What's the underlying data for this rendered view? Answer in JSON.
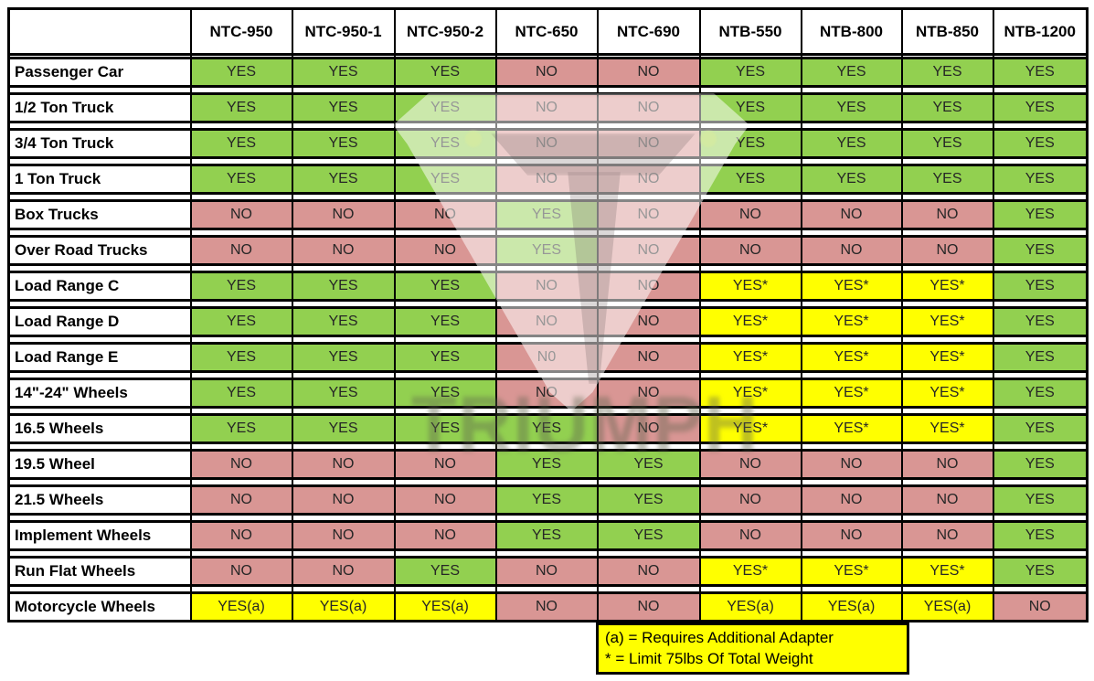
{
  "chart_data": {
    "type": "table",
    "columns": [
      "NTC-950",
      "NTC-950-1",
      "NTC-950-2",
      "NTC-650",
      "NTC-690",
      "NTB-550",
      "NTB-800",
      "NTB-850",
      "NTB-1200"
    ],
    "rows": [
      {
        "label": "Passenger Car",
        "values": [
          "YES",
          "YES",
          "YES",
          "NO",
          "NO",
          "YES",
          "YES",
          "YES",
          "YES"
        ]
      },
      {
        "label": "1/2 Ton Truck",
        "values": [
          "YES",
          "YES",
          "YES",
          "NO",
          "NO",
          "YES",
          "YES",
          "YES",
          "YES"
        ]
      },
      {
        "label": "3/4 Ton Truck",
        "values": [
          "YES",
          "YES",
          "YES",
          "NO",
          "NO",
          "YES",
          "YES",
          "YES",
          "YES"
        ]
      },
      {
        "label": "1 Ton Truck",
        "values": [
          "YES",
          "YES",
          "YES",
          "NO",
          "NO",
          "YES",
          "YES",
          "YES",
          "YES"
        ]
      },
      {
        "label": "Box Trucks",
        "values": [
          "NO",
          "NO",
          "NO",
          "YES",
          "NO",
          "NO",
          "NO",
          "NO",
          "YES"
        ]
      },
      {
        "label": "Over Road Trucks",
        "values": [
          "NO",
          "NO",
          "NO",
          "YES",
          "NO",
          "NO",
          "NO",
          "NO",
          "YES"
        ]
      },
      {
        "label": "Load Range C",
        "values": [
          "YES",
          "YES",
          "YES",
          "NO",
          "NO",
          "YES*",
          "YES*",
          "YES*",
          "YES"
        ]
      },
      {
        "label": "Load Range D",
        "values": [
          "YES",
          "YES",
          "YES",
          "NO",
          "NO",
          "YES*",
          "YES*",
          "YES*",
          "YES"
        ]
      },
      {
        "label": "Load Range E",
        "values": [
          "YES",
          "YES",
          "YES",
          "N0",
          "NO",
          "YES*",
          "YES*",
          "YES*",
          "YES"
        ]
      },
      {
        "label": "14\"-24\" Wheels",
        "values": [
          "YES",
          "YES",
          "YES",
          "NO",
          "NO",
          "YES*",
          "YES*",
          "YES*",
          "YES"
        ]
      },
      {
        "label": "16.5 Wheels",
        "values": [
          "YES",
          "YES",
          "YES",
          "YES",
          "NO",
          "YES*",
          "YES*",
          "YES*",
          "YES"
        ]
      },
      {
        "label": "19.5 Wheel",
        "values": [
          "NO",
          "NO",
          "NO",
          "YES",
          "YES",
          "NO",
          "NO",
          "NO",
          "YES"
        ]
      },
      {
        "label": "21.5 Wheels",
        "values": [
          "NO",
          "NO",
          "NO",
          "YES",
          "YES",
          "NO",
          "NO",
          "NO",
          "YES"
        ]
      },
      {
        "label": "Implement Wheels",
        "values": [
          "NO",
          "NO",
          "NO",
          "YES",
          "YES",
          "NO",
          "NO",
          "NO",
          "YES"
        ]
      },
      {
        "label": "Run Flat Wheels",
        "values": [
          "NO",
          "NO",
          "YES",
          "NO",
          "NO",
          "YES*",
          "YES*",
          "YES*",
          "YES"
        ]
      },
      {
        "label": "Motorcycle Wheels",
        "values": [
          "YES(a)",
          "YES(a)",
          "YES(a)",
          "NO",
          "NO",
          "YES(a)",
          "YES(a)",
          "YES(a)",
          "NO"
        ]
      }
    ],
    "notes": [
      "(a) = Requires Additional Adapter",
      "* = Limit 75lbs Of Total Weight"
    ]
  },
  "colors": {
    "yes_green": "#92d050",
    "no_red": "#d99694",
    "conditional_yellow": "#ffff00",
    "border_black": "#000000"
  },
  "watermark": {
    "text": "TRIUMPH"
  }
}
